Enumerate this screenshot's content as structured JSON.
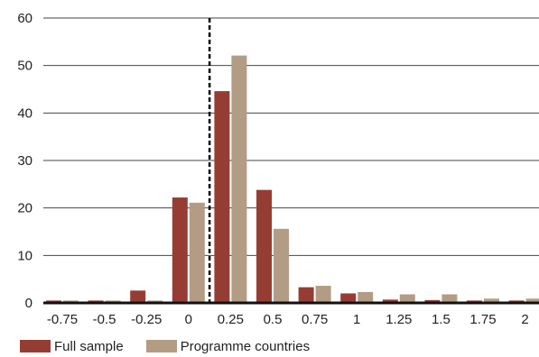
{
  "chart_data": {
    "type": "bar",
    "categories": [
      "-0.75",
      "-0.5",
      "-0.25",
      "0",
      "0.25",
      "0.5",
      "0.75",
      "1",
      "1.25",
      "1.5",
      "1.75",
      "2"
    ],
    "series": [
      {
        "name": "Full sample",
        "color": "#963d33",
        "values": [
          0.5,
          0.5,
          2.6,
          22.2,
          44.6,
          23.8,
          3.3,
          2.0,
          0.7,
          0.6,
          0.5,
          0.5
        ]
      },
      {
        "name": "Programme countries",
        "color": "#b39c84",
        "values": [
          0.5,
          0.5,
          0.5,
          21.1,
          52.1,
          15.6,
          3.6,
          2.3,
          1.8,
          1.8,
          0.9,
          0.9
        ]
      }
    ],
    "ylim": [
      0,
      60
    ],
    "yticks": [
      0,
      10,
      20,
      30,
      40,
      50,
      60
    ],
    "reference_line": {
      "x": 0.125,
      "style": "dashed",
      "color": "#000000"
    },
    "grid": true,
    "legend_position": "bottom-left"
  }
}
